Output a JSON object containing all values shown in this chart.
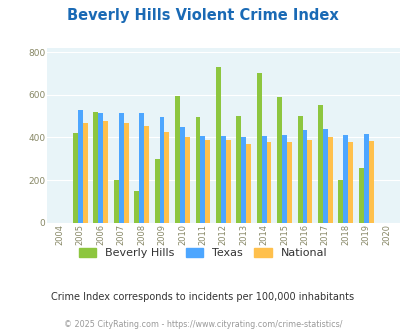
{
  "title": "Beverly Hills Violent Crime Index",
  "years": [
    2004,
    2005,
    2006,
    2007,
    2008,
    2009,
    2010,
    2011,
    2012,
    2013,
    2014,
    2015,
    2016,
    2017,
    2018,
    2019,
    2020
  ],
  "beverly_hills": [
    null,
    420,
    520,
    200,
    150,
    300,
    595,
    495,
    730,
    500,
    700,
    590,
    500,
    550,
    200,
    255,
    null
  ],
  "texas": [
    null,
    530,
    515,
    515,
    515,
    495,
    450,
    405,
    405,
    400,
    405,
    410,
    435,
    440,
    410,
    415,
    null
  ],
  "national": [
    null,
    468,
    475,
    468,
    455,
    425,
    400,
    390,
    390,
    368,
    378,
    380,
    388,
    400,
    380,
    382,
    null
  ],
  "colors": {
    "beverly_hills": "#8dc63f",
    "texas": "#4da6ff",
    "national": "#ffc04c"
  },
  "ylabel_ticks": [
    0,
    200,
    400,
    600,
    800
  ],
  "ylim": [
    0,
    820
  ],
  "bg_color": "#e8f4f8",
  "subtitle": "Crime Index corresponds to incidents per 100,000 inhabitants",
  "footer": "© 2025 CityRating.com - https://www.cityrating.com/crime-statistics/",
  "title_color": "#1a6ab5",
  "subtitle_color": "#333333",
  "footer_color": "#999999"
}
